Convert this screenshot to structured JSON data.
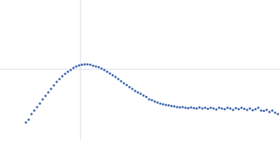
{
  "chart_data": {
    "type": "scatter",
    "x": [
      37,
      41,
      45,
      49,
      53,
      57,
      61,
      65,
      69,
      73,
      77,
      81,
      85,
      89,
      93,
      97,
      101,
      105,
      109,
      113,
      117,
      121,
      125,
      129,
      133,
      137,
      141,
      145,
      149,
      153,
      157,
      161,
      165,
      169,
      173,
      177,
      181,
      185,
      189,
      193,
      197,
      201,
      205,
      209,
      213,
      217,
      221,
      225,
      229,
      233,
      237,
      241,
      245,
      249,
      253,
      257,
      261,
      265,
      269,
      273,
      277,
      281,
      285,
      289,
      293,
      297,
      301,
      305,
      309,
      313,
      317,
      321,
      325,
      329,
      333,
      337,
      341,
      345,
      349,
      353,
      357,
      361,
      365,
      369,
      373,
      377,
      381,
      385,
      389,
      393,
      397
    ],
    "values": [
      25,
      29,
      37,
      42,
      47,
      52,
      58,
      63,
      68,
      73,
      78,
      83,
      87,
      91,
      94.5,
      97.5,
      100,
      103,
      105,
      106.5,
      107.5,
      108,
      108,
      107.5,
      106,
      105,
      104,
      102,
      100,
      97.5,
      95,
      92.5,
      90,
      87,
      84,
      81,
      78.5,
      75.5,
      73,
      70,
      68,
      66,
      63.5,
      61.5,
      58,
      57,
      55,
      53.5,
      52,
      51,
      50,
      49.5,
      48.5,
      48,
      47,
      46.5,
      47,
      46,
      45.5,
      46.5,
      45.5,
      45,
      46.5,
      45,
      46,
      44.5,
      46,
      45,
      43.5,
      46,
      45,
      44,
      46,
      45,
      43,
      45.5,
      44,
      46,
      44.5,
      43,
      45,
      42.5,
      44,
      46,
      42,
      41.5,
      43,
      40,
      42,
      39,
      37
    ],
    "color": "#3a64b0",
    "xlim": [
      0,
      400
    ],
    "ylim": [
      0,
      200
    ],
    "xticks": [
      115
    ],
    "yticks": [
      101
    ],
    "grid": true
  }
}
